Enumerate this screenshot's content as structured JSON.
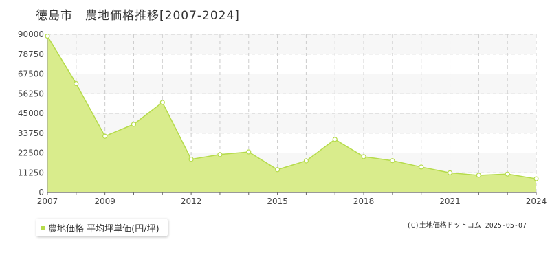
{
  "title": "徳島市　農地価格推移[2007-2024]",
  "colors": {
    "area_fill": "#d9ec8c",
    "line": "#b5db4a",
    "marker_fill": "#ffffff",
    "marker_stroke": "#b5db4a",
    "grid": "#cccccc",
    "band": "#f7f7f7",
    "legend_swatch": "#b5db4a"
  },
  "legend": {
    "label": "農地価格 平均坪単価(円/坪)"
  },
  "copyright": "(C)土地価格ドットコム 2025-05-07",
  "chart_data": {
    "type": "area",
    "title": "徳島市　農地価格推移[2007-2024]",
    "x": [
      2007,
      2008,
      2009,
      2010,
      2011,
      2012,
      2013,
      2014,
      2015,
      2016,
      2017,
      2018,
      2019,
      2020,
      2021,
      2022,
      2023,
      2024
    ],
    "series": [
      {
        "name": "農地価格 平均坪単価(円/坪)",
        "values": [
          89000,
          62000,
          32000,
          38800,
          51300,
          18900,
          21600,
          23100,
          13000,
          18000,
          30200,
          20400,
          18100,
          14500,
          11200,
          9800,
          10500,
          7800
        ]
      }
    ],
    "xticks": [
      2007,
      2009,
      2012,
      2015,
      2018,
      2021,
      2024
    ],
    "xtick_labels": [
      "2007",
      "2009",
      "2012",
      "2015",
      "2018",
      "2021",
      "2024"
    ],
    "yticks": [
      0,
      11250,
      22500,
      33750,
      45000,
      56250,
      67500,
      78750,
      90000
    ],
    "ytick_labels": [
      "0",
      "11250",
      "22500",
      "33750",
      "45000",
      "56250",
      "67500",
      "78750",
      "90000"
    ],
    "xlim": [
      2007,
      2024
    ],
    "ylim": [
      0,
      90000
    ],
    "xlabel": "",
    "ylabel": "",
    "grid": true,
    "legend_position": "bottom-left"
  }
}
